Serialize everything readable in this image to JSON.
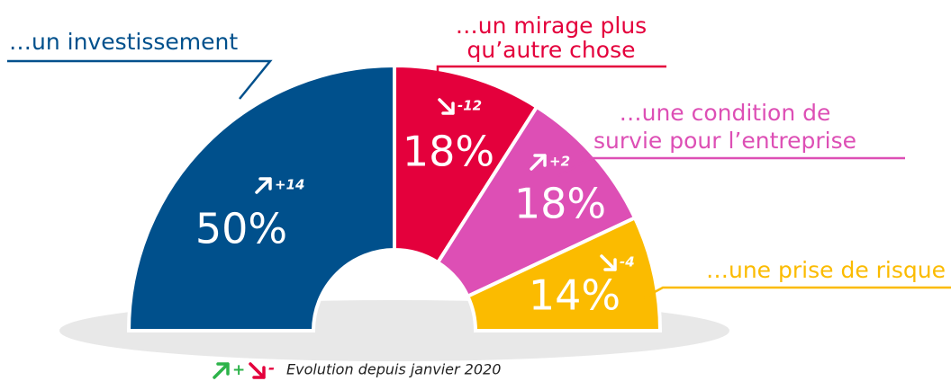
{
  "chart_data": {
    "type": "half-donut",
    "labels": [
      [
        "…un investissement"
      ],
      [
        "…un mirage plus",
        "qu’autre chose"
      ],
      [
        "…une condition de",
        "survie pour l’entreprise"
      ],
      [
        "…une prise de risque"
      ]
    ],
    "values": [
      50,
      18,
      18,
      14
    ],
    "value_labels": [
      "50%",
      "18%",
      "18%",
      "14%"
    ],
    "changes": [
      14,
      -12,
      2,
      -4
    ],
    "change_labels": [
      "+14",
      "-12",
      "+2",
      "-4"
    ],
    "colors": [
      "#00508c",
      "#e4003c",
      "#dd4fb5",
      "#fbbb00"
    ],
    "legend": {
      "increase": "+",
      "decrease": "-",
      "text": "Evolution depuis janvier 2020",
      "increase_color": "#2db34a",
      "decrease_color": "#e4003c"
    }
  }
}
